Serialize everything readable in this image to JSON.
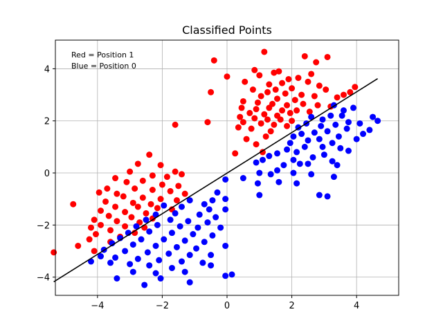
{
  "chart_data": {
    "type": "scatter",
    "title": "Classified Points",
    "xlabel": "",
    "ylabel": "",
    "xlim": [
      -5.3,
      5.3
    ],
    "ylim": [
      -4.7,
      5.1
    ],
    "xticks": [
      -4,
      -2,
      0,
      2,
      4
    ],
    "yticks": [
      -4,
      -2,
      0,
      2,
      4
    ],
    "xtick_labels": [
      "−4",
      "−2",
      "0",
      "2",
      "4"
    ],
    "ytick_labels": [
      "−4",
      "−2",
      "0",
      "2",
      "4"
    ],
    "grid": true,
    "annotations": [
      "Red = Position 1",
      "Blue = Position 0"
    ],
    "decision_line": {
      "x": [
        -5.35,
        4.65
      ],
      "y": [
        -4.18,
        3.62
      ],
      "color": "#000000"
    },
    "series": [
      {
        "color": "#ff0000",
        "points": [
          [
            1.15,
            4.65
          ],
          [
            2.4,
            4.48
          ],
          [
            3.1,
            4.45
          ],
          [
            -0.4,
            4.32
          ],
          [
            2.75,
            4.25
          ],
          [
            0.85,
            3.95
          ],
          [
            1.6,
            3.9
          ],
          [
            2.6,
            3.8
          ],
          [
            1.45,
            3.85
          ],
          [
            1.0,
            3.75
          ],
          [
            1.9,
            3.6
          ],
          [
            2.2,
            3.65
          ],
          [
            2.5,
            3.5
          ],
          [
            0.55,
            3.5
          ],
          [
            0.0,
            3.7
          ],
          [
            1.7,
            3.45
          ],
          [
            1.3,
            3.4
          ],
          [
            2.85,
            3.35
          ],
          [
            3.05,
            3.2
          ],
          [
            3.95,
            3.3
          ],
          [
            3.8,
            3.1
          ],
          [
            1.5,
            3.2
          ],
          [
            2.0,
            3.25
          ],
          [
            3.6,
            3.0
          ],
          [
            3.4,
            2.9
          ],
          [
            0.8,
            3.2
          ],
          [
            1.25,
            3.1
          ],
          [
            1.8,
            3.05
          ],
          [
            2.3,
            3.0
          ],
          [
            2.7,
            2.95
          ],
          [
            -0.5,
            3.1
          ],
          [
            1.05,
            2.95
          ],
          [
            1.55,
            2.85
          ],
          [
            2.1,
            2.8
          ],
          [
            0.5,
            2.75
          ],
          [
            0.95,
            2.7
          ],
          [
            1.4,
            2.65
          ],
          [
            1.85,
            2.6
          ],
          [
            2.35,
            2.65
          ],
          [
            2.8,
            2.6
          ],
          [
            3.2,
            2.55
          ],
          [
            0.45,
            2.5
          ],
          [
            0.9,
            2.45
          ],
          [
            1.3,
            2.5
          ],
          [
            1.7,
            2.4
          ],
          [
            2.15,
            2.4
          ],
          [
            2.55,
            2.35
          ],
          [
            0.7,
            2.3
          ],
          [
            1.15,
            2.25
          ],
          [
            1.55,
            2.2
          ],
          [
            1.95,
            2.3
          ],
          [
            0.4,
            2.15
          ],
          [
            0.85,
            2.1
          ],
          [
            1.25,
            2.05
          ],
          [
            1.65,
            2.05
          ],
          [
            2.0,
            2.0
          ],
          [
            0.5,
            1.95
          ],
          [
            -0.6,
            1.95
          ],
          [
            1.05,
            1.9
          ],
          [
            1.45,
            1.85
          ],
          [
            1.85,
            1.8
          ],
          [
            0.35,
            1.75
          ],
          [
            0.75,
            1.7
          ],
          [
            1.35,
            1.6
          ],
          [
            -1.6,
            1.85
          ],
          [
            1.2,
            1.4
          ],
          [
            0.6,
            1.3
          ],
          [
            0.9,
            1.1
          ],
          [
            1.1,
            0.8
          ],
          [
            0.25,
            0.75
          ],
          [
            -2.4,
            0.7
          ],
          [
            -2.75,
            0.35
          ],
          [
            -2.05,
            0.3
          ],
          [
            -3.0,
            0.05
          ],
          [
            -1.6,
            0.05
          ],
          [
            -1.4,
            -0.05
          ],
          [
            -2.3,
            -0.1
          ],
          [
            -1.85,
            -0.15
          ],
          [
            -3.45,
            -0.2
          ],
          [
            -2.6,
            -0.3
          ],
          [
            -3.1,
            -0.35
          ],
          [
            -2.0,
            -0.45
          ],
          [
            -1.5,
            -0.5
          ],
          [
            -3.7,
            -0.6
          ],
          [
            -2.85,
            -0.6
          ],
          [
            -2.3,
            -0.65
          ],
          [
            -1.75,
            -0.7
          ],
          [
            -3.95,
            -0.75
          ],
          [
            -3.4,
            -0.8
          ],
          [
            -1.3,
            -0.8
          ],
          [
            -3.2,
            -0.9
          ],
          [
            -2.6,
            -0.95
          ],
          [
            -2.05,
            -1.0
          ],
          [
            -1.55,
            -1.05
          ],
          [
            -3.75,
            -1.1
          ],
          [
            -2.9,
            -1.15
          ],
          [
            -2.35,
            -1.2
          ],
          [
            -4.75,
            -1.2
          ],
          [
            -3.45,
            -1.3
          ],
          [
            -2.75,
            -1.3
          ],
          [
            -2.15,
            -1.35
          ],
          [
            -1.7,
            -1.4
          ],
          [
            -3.9,
            -1.45
          ],
          [
            -3.15,
            -1.5
          ],
          [
            -2.5,
            -1.55
          ],
          [
            -3.65,
            -1.65
          ],
          [
            -2.95,
            -1.7
          ],
          [
            -2.3,
            -1.75
          ],
          [
            -4.1,
            -1.8
          ],
          [
            -3.4,
            -1.85
          ],
          [
            -2.7,
            -1.9
          ],
          [
            -3.9,
            -2.0
          ],
          [
            -3.15,
            -2.05
          ],
          [
            -4.2,
            -2.1
          ],
          [
            -2.55,
            -2.1
          ],
          [
            -3.6,
            -2.2
          ],
          [
            -2.85,
            -2.3
          ],
          [
            -4.05,
            -2.35
          ],
          [
            -3.3,
            -2.45
          ],
          [
            -4.25,
            -2.55
          ],
          [
            -3.6,
            -2.65
          ],
          [
            -4.6,
            -2.8
          ],
          [
            -4.1,
            -3.0
          ],
          [
            -5.35,
            -3.05
          ]
        ]
      },
      {
        "color": "#0000ff",
        "points": [
          [
            3.3,
            2.6
          ],
          [
            3.6,
            2.4
          ],
          [
            3.9,
            2.5
          ],
          [
            4.5,
            2.15
          ],
          [
            4.65,
            2.0
          ],
          [
            4.1,
            1.9
          ],
          [
            4.4,
            1.65
          ],
          [
            3.55,
            2.2
          ],
          [
            3.75,
            1.95
          ],
          [
            3.2,
            2.2
          ],
          [
            2.95,
            2.05
          ],
          [
            2.6,
            2.15
          ],
          [
            3.35,
            1.85
          ],
          [
            2.9,
            1.8
          ],
          [
            2.45,
            1.9
          ],
          [
            2.2,
            1.75
          ],
          [
            3.7,
            1.7
          ],
          [
            3.1,
            1.6
          ],
          [
            2.7,
            1.55
          ],
          [
            2.3,
            1.5
          ],
          [
            4.2,
            1.5
          ],
          [
            3.45,
            1.4
          ],
          [
            2.05,
            1.4
          ],
          [
            2.85,
            1.3
          ],
          [
            2.5,
            1.25
          ],
          [
            1.95,
            1.15
          ],
          [
            3.25,
            1.15
          ],
          [
            4.0,
            1.3
          ],
          [
            3.5,
            0.95
          ],
          [
            2.95,
            1.0
          ],
          [
            2.4,
            1.0
          ],
          [
            1.85,
            0.9
          ],
          [
            3.75,
            0.85
          ],
          [
            2.15,
            0.8
          ],
          [
            1.55,
            0.75
          ],
          [
            3.0,
            0.7
          ],
          [
            2.65,
            0.6
          ],
          [
            1.3,
            0.65
          ],
          [
            2.05,
            0.5
          ],
          [
            1.1,
            0.5
          ],
          [
            0.9,
            0.4
          ],
          [
            3.25,
            0.45
          ],
          [
            2.5,
            0.35
          ],
          [
            1.75,
            0.3
          ],
          [
            3.4,
            0.3
          ],
          [
            2.25,
            0.35
          ],
          [
            1.55,
            0.1
          ],
          [
            2.05,
            0.0
          ],
          [
            1.0,
            0.0
          ],
          [
            1.35,
            -0.05
          ],
          [
            2.6,
            -0.05
          ],
          [
            3.3,
            -0.15
          ],
          [
            0.5,
            -0.2
          ],
          [
            2.15,
            -0.4
          ],
          [
            1.6,
            -0.35
          ],
          [
            0.95,
            -0.4
          ],
          [
            -0.05,
            -0.25
          ],
          [
            -1.15,
            -1.05
          ],
          [
            -0.45,
            -1.05
          ],
          [
            -0.3,
            -0.75
          ],
          [
            -0.05,
            -1.0
          ],
          [
            -0.7,
            -1.2
          ],
          [
            -1.95,
            -1.25
          ],
          [
            -1.4,
            -1.3
          ],
          [
            -0.55,
            -1.4
          ],
          [
            -0.05,
            -1.4
          ],
          [
            -1.6,
            -1.55
          ],
          [
            -2.2,
            -1.6
          ],
          [
            -0.85,
            -1.6
          ],
          [
            -0.35,
            -1.7
          ],
          [
            1.0,
            -0.85
          ],
          [
            2.85,
            -0.85
          ],
          [
            3.1,
            -0.9
          ],
          [
            -2.5,
            -1.8
          ],
          [
            -1.75,
            -1.8
          ],
          [
            -1.2,
            -1.85
          ],
          [
            -0.6,
            -1.9
          ],
          [
            -2.8,
            -2.05
          ],
          [
            -2.15,
            -2.0
          ],
          [
            -1.45,
            -2.05
          ],
          [
            -0.9,
            -2.1
          ],
          [
            -0.2,
            -2.1
          ],
          [
            -3.05,
            -2.3
          ],
          [
            -2.4,
            -2.25
          ],
          [
            -1.7,
            -2.3
          ],
          [
            -1.05,
            -2.35
          ],
          [
            -0.45,
            -2.4
          ],
          [
            -3.3,
            -2.5
          ],
          [
            -2.65,
            -2.55
          ],
          [
            -1.95,
            -2.55
          ],
          [
            -1.3,
            -2.6
          ],
          [
            -0.7,
            -2.65
          ],
          [
            -3.55,
            -2.7
          ],
          [
            -2.9,
            -2.75
          ],
          [
            -2.2,
            -2.8
          ],
          [
            -1.55,
            -2.85
          ],
          [
            -0.95,
            -2.9
          ],
          [
            -0.05,
            -2.8
          ],
          [
            -3.8,
            -2.95
          ],
          [
            -3.15,
            -3.0
          ],
          [
            -2.45,
            -3.05
          ],
          [
            -1.8,
            -3.1
          ],
          [
            -1.15,
            -3.15
          ],
          [
            -0.5,
            -3.15
          ],
          [
            -3.45,
            -3.25
          ],
          [
            -2.75,
            -3.3
          ],
          [
            -2.1,
            -3.35
          ],
          [
            -1.4,
            -3.4
          ],
          [
            -0.75,
            -3.45
          ],
          [
            -3.6,
            -3.45
          ],
          [
            -3.0,
            -3.5
          ],
          [
            -2.4,
            -3.55
          ],
          [
            -0.5,
            -3.55
          ],
          [
            -1.7,
            -3.65
          ],
          [
            -2.9,
            -3.8
          ],
          [
            -2.2,
            -3.85
          ],
          [
            -1.3,
            -3.8
          ],
          [
            -0.05,
            -3.95
          ],
          [
            -3.4,
            -4.05
          ],
          [
            -2.05,
            -4.05
          ],
          [
            -1.15,
            -4.2
          ],
          [
            -2.55,
            -4.3
          ],
          [
            0.15,
            -3.9
          ],
          [
            -4.2,
            -3.4
          ],
          [
            -3.9,
            -3.2
          ]
        ]
      }
    ]
  }
}
